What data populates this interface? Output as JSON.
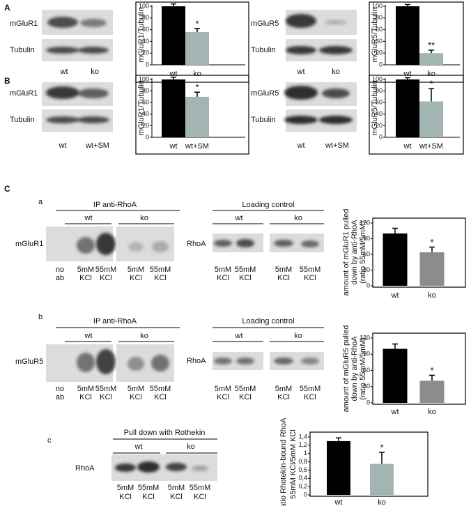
{
  "labels": [
    "A",
    "mGluR1",
    "Tubulin",
    "wt",
    "ko",
    "mGluR5",
    "Tubulin",
    "wt",
    "ko",
    "B",
    "mGluR1",
    "Tubulin",
    "wt",
    "wt+SM",
    "mGluR5",
    "Tubulin",
    "wt",
    "wt+SM",
    "C",
    "a",
    "IP anti-RhoA",
    "wt",
    "ko",
    "mGluR1",
    "no",
    "ab",
    "5mM",
    "KCl",
    "55mM",
    "KCl",
    "5mM",
    "KCl",
    "55mM",
    "KCl",
    "Loading control",
    "wt",
    "ko",
    "RhoA",
    "5mM",
    "KCl",
    "55mM",
    "KCl",
    "5mM",
    "KCl",
    "55mM",
    "KCl",
    "b",
    "IP anti-RhoA",
    "wt",
    "ko",
    "mGluR5",
    "no",
    "ab",
    "5mM",
    "KCl",
    "55mM",
    "KCl",
    "5mM",
    "KCl",
    "55mM",
    "KCl",
    "Loading control",
    "wt",
    "ko",
    "RhoA",
    "5mM",
    "KCl",
    "55mM",
    "KCl",
    "5mM",
    "KCl",
    "55mM",
    "KCl",
    "c",
    "Pull down with Rothekin",
    "wt",
    "ko",
    "RhoA",
    "5mM",
    "KCl",
    "55mM",
    "KCl",
    "5mM",
    "KCl",
    "55mM",
    "KCl"
  ],
  "chart_data": [
    {
      "type": "bar",
      "ylabel": "mGluR1/Tubulin",
      "categories": [
        "wt",
        "ko"
      ],
      "values": [
        100,
        56
      ],
      "errors": [
        4,
        6
      ],
      "colors": [
        "#000000",
        "#a3b5b3"
      ],
      "ylim": [
        0,
        100
      ],
      "yticks": [
        0,
        20,
        40,
        60,
        80,
        100
      ],
      "annotations": [
        "*"
      ]
    },
    {
      "type": "bar",
      "ylabel": "mGluR5/Tubulin",
      "categories": [
        "wt",
        "ko"
      ],
      "values": [
        100,
        20
      ],
      "errors": [
        3,
        5
      ],
      "colors": [
        "#000000",
        "#a3b5b3"
      ],
      "ylim": [
        0,
        100
      ],
      "yticks": [
        0,
        20,
        40,
        60,
        80,
        100
      ],
      "annotations": [
        "**"
      ]
    },
    {
      "type": "bar",
      "ylabel": "mGluR1/Tubulin",
      "categories": [
        "wt",
        "wt+SM"
      ],
      "values": [
        100,
        70
      ],
      "errors": [
        4,
        8
      ],
      "colors": [
        "#000000",
        "#a3b5b3"
      ],
      "ylim": [
        0,
        100
      ],
      "yticks": [
        0,
        20,
        40,
        60,
        80,
        100
      ],
      "annotations": [
        "*"
      ]
    },
    {
      "type": "bar",
      "ylabel": "mGluR5/Tubulin",
      "categories": [
        "wt",
        "wt+SM"
      ],
      "values": [
        100,
        62
      ],
      "errors": [
        3,
        22
      ],
      "colors": [
        "#000000",
        "#a3b5b3"
      ],
      "ylim": [
        0,
        100
      ],
      "yticks": [
        0,
        20,
        40,
        60,
        80,
        100
      ],
      "annotations": [
        "*"
      ]
    },
    {
      "type": "bar",
      "ylabel_lines": [
        "amount of mGluR1 pulled",
        "down by anti-RhoA",
        "(ratio 55mM/5mM)"
      ],
      "categories": [
        "wt",
        "ko"
      ],
      "values": [
        100,
        64
      ],
      "errors": [
        10,
        10
      ],
      "colors": [
        "#000000",
        "#8c8c8c"
      ],
      "ylim": [
        0,
        120
      ],
      "yticks": [
        0,
        30,
        60,
        90,
        120
      ],
      "annotations": [
        "*"
      ]
    },
    {
      "type": "bar",
      "ylabel_lines": [
        "amount of mGluR5 pulled",
        "down by anti-RhoA",
        "(ratio 55mM/5mM)"
      ],
      "categories": [
        "wt",
        "ko"
      ],
      "values": [
        100,
        41
      ],
      "errors": [
        9,
        10
      ],
      "colors": [
        "#000000",
        "#8c8c8c"
      ],
      "ylim": [
        0,
        120
      ],
      "yticks": [
        0,
        30,
        60,
        90,
        120
      ],
      "annotations": [
        "*"
      ]
    },
    {
      "type": "bar",
      "ylabel_lines": [
        "ratio Rhotekin-bound RhoA",
        "55mM KCl/5mM KCl"
      ],
      "categories": [
        "wt",
        "ko"
      ],
      "values": [
        1.3,
        0.75
      ],
      "errors": [
        0.08,
        0.28
      ],
      "colors": [
        "#000000",
        "#a3b5b3"
      ],
      "ylim": [
        0,
        1.4
      ],
      "yticks": [
        0,
        {
          "value": 0.2,
          "label": "0,2"
        },
        {
          "value": 0.4,
          "label": "0,4"
        },
        {
          "value": 0.6,
          "label": "0,6"
        },
        {
          "value": 0.8,
          "label": "0,8"
        },
        1,
        {
          "value": 1.2,
          "label": "1,2"
        },
        {
          "value": 1.4,
          "label": "1,4"
        }
      ],
      "annotations": [
        "*"
      ]
    }
  ]
}
